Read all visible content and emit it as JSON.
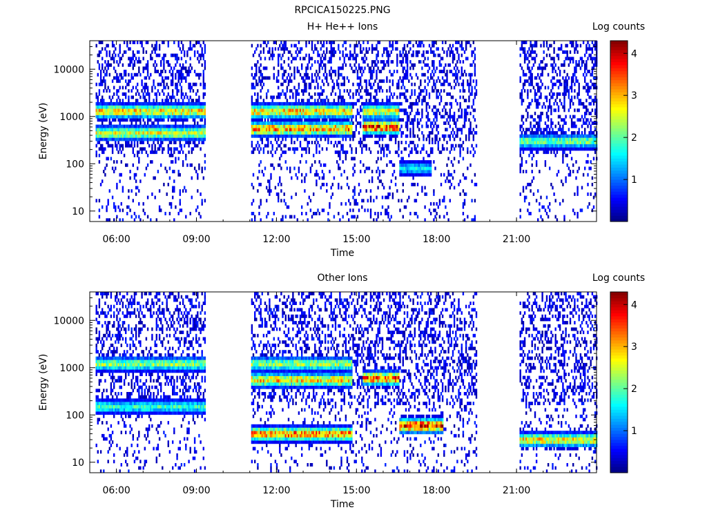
{
  "file_title": "RPCICA150225.PNG",
  "colors": {
    "colormap": [
      "#00007f",
      "#0000ff",
      "#007fff",
      "#00ffff",
      "#7fff7f",
      "#ffff00",
      "#ff7f00",
      "#ff0000",
      "#7f0000"
    ]
  },
  "chart_data": [
    {
      "type": "heatmap",
      "title": "H+ He++ Ions",
      "xlabel": "Time",
      "ylabel": "Energy (eV)",
      "colorbar_label": "Log counts",
      "colorbar_ticks": [
        1,
        2,
        3,
        4
      ],
      "colorbar_range": [
        0,
        4.3
      ],
      "x_ticks": [
        "06:00",
        "09:00",
        "12:00",
        "15:00",
        "18:00",
        "21:00"
      ],
      "y_ticks": [
        "10",
        "100",
        "1000",
        "10000"
      ],
      "y_scale": "log",
      "ylim": [
        6,
        40000
      ],
      "xlim_hours": [
        5.0,
        24.0
      ],
      "data_gaps_hours": [
        [
          9.3,
          11.0
        ],
        [
          19.5,
          21.1
        ]
      ],
      "bands": [
        {
          "t": [
            5.2,
            9.3
          ],
          "energy": 1300,
          "level": 2.9
        },
        {
          "t": [
            11.0,
            14.8
          ],
          "energy": 1300,
          "level": 3.0
        },
        {
          "t": [
            15.2,
            16.6
          ],
          "energy": 1300,
          "level": 2.8
        },
        {
          "t": [
            5.2,
            9.3
          ],
          "energy": 450,
          "level": 2.6
        },
        {
          "t": [
            11.0,
            14.8
          ],
          "energy": 550,
          "level": 3.3
        },
        {
          "t": [
            15.2,
            16.6
          ],
          "energy": 600,
          "level": 3.8
        },
        {
          "t": [
            16.6,
            17.8
          ],
          "energy": 80,
          "level": 1.6
        },
        {
          "t": [
            21.1,
            24.0
          ],
          "energy": 300,
          "level": 2.2
        }
      ]
    },
    {
      "type": "heatmap",
      "title": "Other Ions",
      "xlabel": "Time",
      "ylabel": "Energy (eV)",
      "colorbar_label": "Log counts",
      "colorbar_ticks": [
        1,
        2,
        3,
        4
      ],
      "colorbar_range": [
        0,
        4.3
      ],
      "x_ticks": [
        "06:00",
        "09:00",
        "12:00",
        "15:00",
        "18:00",
        "21:00"
      ],
      "y_ticks": [
        "10",
        "100",
        "1000",
        "10000"
      ],
      "y_scale": "log",
      "ylim": [
        6,
        40000
      ],
      "xlim_hours": [
        5.0,
        24.0
      ],
      "data_gaps_hours": [
        [
          9.3,
          11.0
        ],
        [
          19.5,
          21.1
        ]
      ],
      "bands": [
        {
          "t": [
            5.2,
            9.3
          ],
          "energy": 1200,
          "level": 2.3
        },
        {
          "t": [
            11.0,
            14.8
          ],
          "energy": 1200,
          "level": 2.4
        },
        {
          "t": [
            5.2,
            9.3
          ],
          "energy": 150,
          "level": 1.9
        },
        {
          "t": [
            11.0,
            14.8
          ],
          "energy": 550,
          "level": 3.0
        },
        {
          "t": [
            11.0,
            14.8
          ],
          "energy": 40,
          "level": 3.4
        },
        {
          "t": [
            15.2,
            16.6
          ],
          "energy": 600,
          "level": 3.5
        },
        {
          "t": [
            16.6,
            18.2
          ],
          "energy": 60,
          "level": 3.9
        },
        {
          "t": [
            21.1,
            24.0
          ],
          "energy": 30,
          "level": 2.9
        }
      ]
    }
  ]
}
